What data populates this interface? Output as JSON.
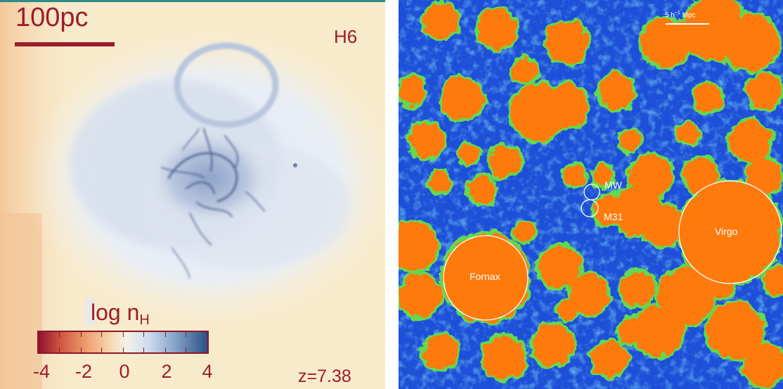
{
  "left_panel": {
    "scale_label": "100pc",
    "sim_label": "H6",
    "redshift": "z=7.38",
    "colorbar": {
      "title_main": "log n",
      "title_sub": "H",
      "ticks": [
        "-4",
        "-2",
        "0",
        "2",
        "4"
      ],
      "colors": [
        "#8f1130",
        "#cf5640",
        "#ee9c6c",
        "#f6d7ad",
        "#f4f1e8",
        "#cfdced",
        "#8aa6cb",
        "#2d4f86"
      ]
    },
    "background_color": "#f8ebcc",
    "gas_color": "#2a3f72"
  },
  "right_panel": {
    "scale_label_main": "5 h",
    "scale_label_sup": "−1",
    "scale_label_unit": " Mpc",
    "halos": [
      {
        "label": "MW"
      },
      {
        "label": "M31"
      },
      {
        "label": "Fornax"
      },
      {
        "label": "Virgo"
      }
    ],
    "colors": {
      "void": "#1d4fd8",
      "filament": "#37b8e8",
      "edge": "#66e04a",
      "halo": "#ff7a10"
    }
  }
}
